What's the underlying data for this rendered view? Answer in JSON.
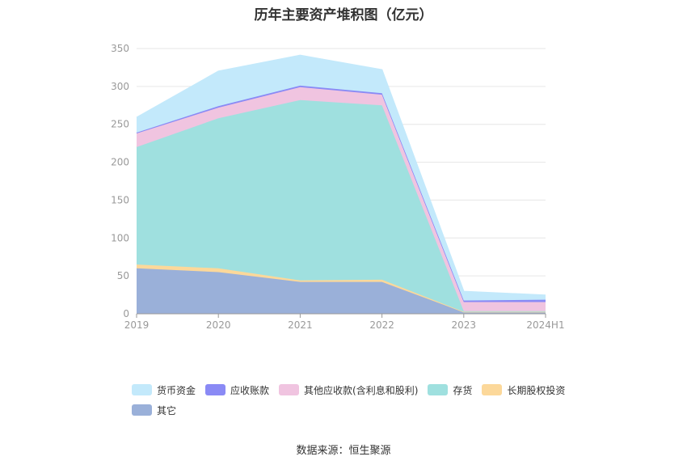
{
  "chart_data": {
    "type": "area",
    "stacked": true,
    "title": "历年主要资产堆积图（亿元）",
    "x": [
      "2019",
      "2020",
      "2021",
      "2022",
      "2023",
      "2024H1"
    ],
    "ylim": [
      0,
      350
    ],
    "yticks": [
      0,
      50,
      100,
      150,
      200,
      250,
      300,
      350
    ],
    "grid": true,
    "legend_position": "bottom",
    "series": [
      {
        "name": "其它",
        "color": "#9ab0d9",
        "values": [
          60,
          55,
          42,
          42,
          2,
          2
        ]
      },
      {
        "name": "长期股权投资",
        "color": "#fcd89a",
        "values": [
          5,
          5,
          2,
          3,
          0.5,
          0.5
        ]
      },
      {
        "name": "存货",
        "color": "#9fe0df",
        "values": [
          155,
          198,
          238,
          230,
          1,
          1
        ]
      },
      {
        "name": "其他应收款(含利息和股利)",
        "color": "#f0c4e0",
        "values": [
          18,
          14,
          17,
          14,
          12,
          12
        ]
      },
      {
        "name": "应收账款",
        "color": "#8a8af5",
        "values": [
          1,
          2,
          2,
          2,
          2,
          3
        ]
      },
      {
        "name": "货币资金",
        "color": "#c3e9fb",
        "values": [
          20,
          46,
          40,
          31,
          12,
          6
        ]
      }
    ],
    "legend_order": [
      "货币资金",
      "应收账款",
      "其他应收款(含利息和股利)",
      "存货",
      "长期股权投资",
      "其它"
    ]
  },
  "source_note": "数据来源：恒生聚源"
}
